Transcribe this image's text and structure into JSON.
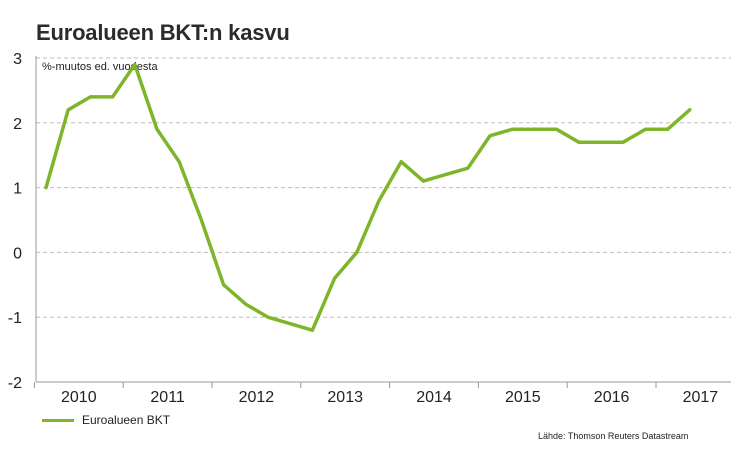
{
  "title": "Euroalueen BKT:n kasvu",
  "unit_label": "%-muutos ed. vuodesta",
  "source": "Lähde: Thomson Reuters Datastream",
  "colors": {
    "series": "#7fb52a",
    "grid": "#bdbdbd",
    "axis": "#9a9a9a",
    "text": "#222222"
  },
  "chart_data": {
    "type": "line",
    "title": "Euroalueen BKT:n kasvu",
    "xlabel": "",
    "ylabel": "%-muutos ed. vuodesta",
    "ylim": [
      -2,
      3
    ],
    "yticks": [
      3,
      2,
      1,
      0,
      -1,
      -2
    ],
    "ytick_labels": [
      "3",
      "2",
      "1",
      "0",
      "-1",
      "-2"
    ],
    "xtick_labels": [
      "2010",
      "2011",
      "2012",
      "2013",
      "2014",
      "2015",
      "2016",
      "2017"
    ],
    "grid": true,
    "legend_position": "bottom-left",
    "series": [
      {
        "name": "Euroalueen BKT",
        "x": [
          "2010Q1",
          "2010Q2",
          "2010Q3",
          "2010Q4",
          "2011Q1",
          "2011Q2",
          "2011Q3",
          "2011Q4",
          "2012Q1",
          "2012Q2",
          "2012Q3",
          "2012Q4",
          "2013Q1",
          "2013Q2",
          "2013Q3",
          "2013Q4",
          "2014Q1",
          "2014Q2",
          "2014Q3",
          "2014Q4",
          "2015Q1",
          "2015Q2",
          "2015Q3",
          "2015Q4",
          "2016Q1",
          "2016Q2",
          "2016Q3",
          "2016Q4",
          "2017Q1",
          "2017Q2"
        ],
        "values": [
          1.0,
          2.2,
          2.4,
          2.4,
          2.9,
          1.9,
          1.4,
          0.5,
          -0.5,
          -0.8,
          -1.0,
          -1.1,
          -1.2,
          -0.4,
          0.0,
          0.8,
          1.4,
          1.1,
          1.2,
          1.3,
          1.8,
          1.9,
          1.9,
          1.9,
          1.7,
          1.7,
          1.7,
          1.9,
          1.9,
          2.2
        ]
      }
    ]
  }
}
